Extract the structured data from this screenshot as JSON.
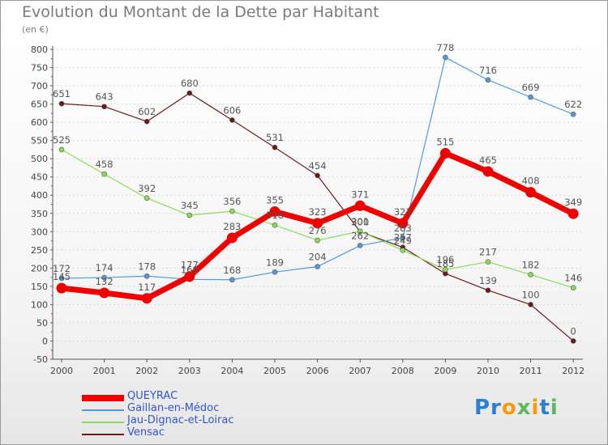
{
  "chart_data": {
    "type": "line",
    "title": "Evolution du Montant de la Dette par Habitant",
    "subtitle": "(en €)",
    "xlabel": "",
    "ylabel": "",
    "ylim": [
      -50,
      800
    ],
    "yticks": [
      -50,
      0,
      50,
      100,
      150,
      200,
      250,
      300,
      350,
      400,
      450,
      500,
      550,
      600,
      650,
      700,
      750,
      800
    ],
    "x": [
      "2000",
      "2001",
      "2002",
      "2003",
      "2004",
      "2005",
      "2006",
      "2007",
      "2008",
      "2009",
      "2010",
      "2011",
      "2012"
    ],
    "grid": "horizontal dashed",
    "legend_position": "bottom-left",
    "series": [
      {
        "name": "Vensac",
        "color": "#6b1a1a",
        "values": [
          651,
          643,
          602,
          680,
          606,
          531,
          454,
          300,
          257,
          185,
          139,
          100,
          0
        ]
      },
      {
        "name": "Jau-Dignac-et-Loirac",
        "color": "#88dd55",
        "values": [
          525,
          458,
          392,
          345,
          356,
          318,
          276,
          301,
          249,
          196,
          217,
          182,
          146
        ]
      },
      {
        "name": "Gaillan-en-Médoc",
        "color": "#5599dd",
        "values": [
          172,
          174,
          178,
          169,
          168,
          189,
          204,
          262,
          283,
          778,
          716,
          669,
          622
        ]
      },
      {
        "name": "QUEYRAC",
        "color": "#ee0000",
        "values": [
          145,
          132,
          117,
          177,
          283,
          355,
          323,
          371,
          323,
          515,
          465,
          408,
          349
        ]
      }
    ],
    "legend_order": [
      "QUEYRAC",
      "Gaillan-en-Médoc",
      "Jau-Dignac-et-Loirac",
      "Vensac"
    ]
  },
  "logo_text": "Proxiti"
}
